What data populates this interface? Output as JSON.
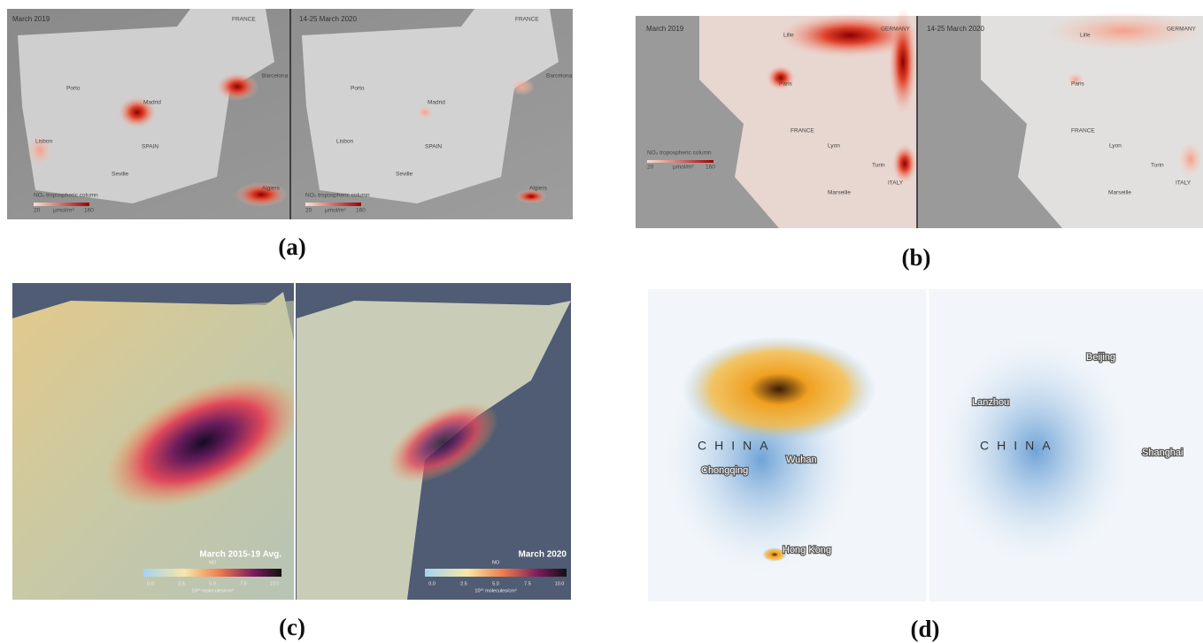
{
  "panels": [
    {
      "label": "(a)",
      "maps": [
        {
          "title": "March 2019",
          "places": [
            "FRANCE",
            "Porto",
            "Madrid",
            "Barcelona",
            "Lisbon",
            "SPAIN",
            "Seville",
            "Algiers"
          ],
          "legend": {
            "title": "NO₂ tropospheric column",
            "min": "20",
            "unit": "µmol/m²",
            "max": "160"
          }
        },
        {
          "title": "14-25 March 2020",
          "places": [
            "FRANCE",
            "Porto",
            "Madrid",
            "Barcelona",
            "Lisbon",
            "SPAIN",
            "Seville",
            "Algiers"
          ],
          "legend": {
            "title": "NO₂ tropospheric column",
            "min": "20",
            "unit": "µmol/m²",
            "max": "160"
          }
        }
      ]
    },
    {
      "label": "(b)",
      "maps": [
        {
          "title": "March 2019",
          "places": [
            "Lille",
            "GERMANY",
            "Paris",
            "FRANCE",
            "Lyon",
            "Turin",
            "ITALY",
            "Marseille"
          ],
          "legend": {
            "title": "NO₂ tropospheric column",
            "min": "20",
            "unit": "µmol/m²",
            "max": "160"
          }
        },
        {
          "title": "14-25 March 2020",
          "places": [
            "Lille",
            "GERMANY",
            "Paris",
            "FRANCE",
            "Lyon",
            "Turin",
            "ITALY",
            "Marseille"
          ]
        }
      ]
    },
    {
      "label": "(c)",
      "maps": [
        {
          "legend": {
            "title": "March 2015-19 Avg.",
            "species": "NO",
            "ticks": [
              "0.0",
              "2.5",
              "5.0",
              "7.5",
              "10.0"
            ],
            "unit": "10¹⁵ molecules/cm²"
          }
        },
        {
          "legend": {
            "title": "March 2020",
            "species": "NO",
            "ticks": [
              "0.0",
              "2.5",
              "5.0",
              "7.5",
              "10.0"
            ],
            "unit": "10¹⁵ molecules/cm²"
          }
        }
      ]
    },
    {
      "label": "(d)",
      "maps": [
        {
          "places": [
            "CHINA",
            "Chongqing",
            "Wuhan",
            "Hong Kong"
          ]
        },
        {
          "places": [
            "Beijing",
            "Lanzhou",
            "CHINA",
            "Shanghai"
          ]
        }
      ]
    }
  ]
}
